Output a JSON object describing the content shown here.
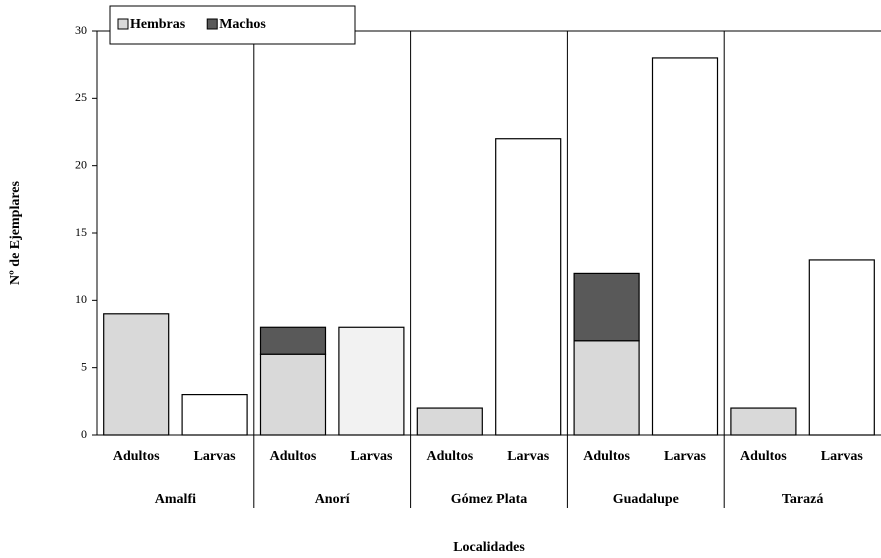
{
  "chart_data": {
    "type": "bar",
    "stacked": true,
    "y_label": "Nº de Ejemplares",
    "x_label": "Localidades",
    "categories": [
      "Adultos",
      "Larvas",
      "Adultos",
      "Larvas",
      "Adultos",
      "Larvas",
      "Adultos",
      "Larvas",
      "Adultos",
      "Larvas"
    ],
    "groups": [
      "Amalfi",
      "Anorí",
      "Gómez Plata",
      "Guadalupe",
      "Tarazá"
    ],
    "series": [
      {
        "name": "Hembras",
        "color": "#d9d9d9",
        "values": [
          9,
          null,
          6,
          null,
          2,
          null,
          7,
          null,
          2,
          null
        ]
      },
      {
        "name": "Machos",
        "color": "#595959",
        "values": [
          null,
          null,
          2,
          null,
          null,
          null,
          5,
          null,
          null,
          null
        ]
      },
      {
        "color": "#ffffff",
        "values": [
          null,
          3,
          null,
          8,
          null,
          22,
          null,
          28,
          null,
          13
        ],
        "colors": [
          null,
          "#ffffff",
          null,
          "#f2f2f2",
          null,
          "#ffffff",
          null,
          "#ffffff",
          null,
          "#ffffff"
        ]
      }
    ],
    "ylim": [
      0,
      30
    ],
    "yticks": [
      0,
      5,
      10,
      15,
      20,
      25,
      30
    ],
    "legend": "top-left"
  }
}
